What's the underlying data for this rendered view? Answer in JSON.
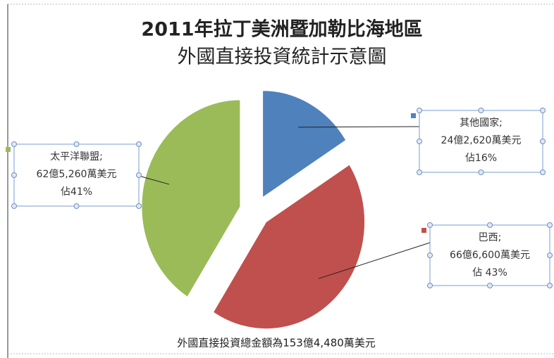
{
  "chart_data": {
    "type": "pie",
    "title": "2011年拉丁美洲暨加勒比海地區",
    "subtitle": "外國直接投資統計示意圖",
    "categories": [
      "其他國家;",
      "巴西;",
      "太平洋聯盟;"
    ],
    "values": [
      16,
      43,
      41
    ],
    "amount_labels": [
      "24億2,620萬美元",
      "66億6,600萬美元",
      "62億5,260萬美元"
    ],
    "value_labels": [
      "佔16%",
      "佔 43%",
      "佔41%"
    ],
    "colors": [
      "#4f81bd",
      "#c0504d",
      "#9bbb59"
    ],
    "note": "外國直接投資總金額為153億4,480萬美元"
  }
}
